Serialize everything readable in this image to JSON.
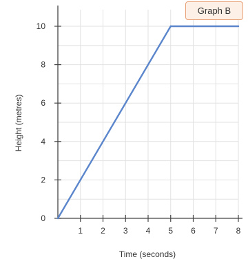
{
  "badge": {
    "label": "Graph B"
  },
  "chart_data": {
    "type": "line",
    "title": "",
    "xlabel": "Time (seconds)",
    "ylabel": "Height (metres)",
    "xlim": [
      0,
      8
    ],
    "ylim": [
      0,
      10
    ],
    "x_ticks": [
      1,
      2,
      3,
      4,
      5,
      6,
      7,
      8
    ],
    "y_ticks": [
      0,
      2,
      4,
      6,
      8,
      10
    ],
    "grid": true,
    "series": [
      {
        "x": [
          0,
          5,
          8
        ],
        "y": [
          0,
          10,
          10
        ]
      }
    ],
    "colors": {
      "line": "#5b86cc",
      "grid": "#e2e2e2",
      "axis": "#444444"
    }
  }
}
